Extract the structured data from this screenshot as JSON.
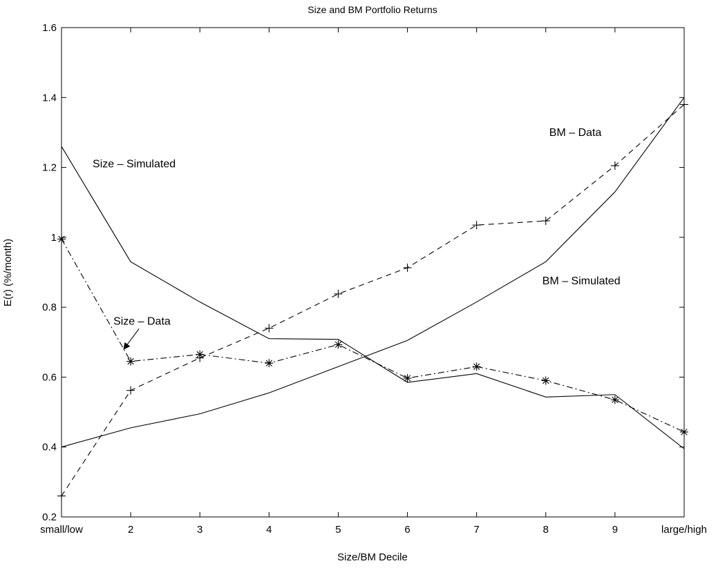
{
  "chart_data": {
    "type": "line",
    "title": "Size and BM Portfolio Returns",
    "xlabel": "Size/BM Decile",
    "ylabel": "E(r) (%/month)",
    "categories": [
      "small/low",
      "2",
      "3",
      "4",
      "5",
      "6",
      "7",
      "8",
      "9",
      "large/high"
    ],
    "x": [
      1,
      2,
      3,
      4,
      5,
      6,
      7,
      8,
      9,
      10
    ],
    "xlim": [
      1,
      10
    ],
    "ylim": [
      0.2,
      1.6
    ],
    "yticks": [
      0.2,
      0.4,
      0.6,
      0.8,
      1,
      1.2,
      1.4,
      1.6
    ],
    "ytick_labels": [
      "0.2",
      "0.4",
      "0.6",
      "0.8",
      "1",
      "1.2",
      "1.4",
      "1.6"
    ],
    "grid": false,
    "series": [
      {
        "key": "size_sim",
        "values": [
          1.26,
          0.93,
          0.815,
          0.71,
          0.708,
          0.585,
          0.61,
          0.543,
          0.55,
          0.395
        ],
        "line": "solid",
        "marker": "none",
        "color": "#000000"
      },
      {
        "key": "size_data",
        "values": [
          0.995,
          0.645,
          0.665,
          0.64,
          0.693,
          0.597,
          0.63,
          0.59,
          0.535,
          0.443
        ],
        "line": "dashdot",
        "marker": "asterisk",
        "color": "#000000"
      },
      {
        "key": "bm_sim",
        "values": [
          0.4,
          0.455,
          0.495,
          0.555,
          0.63,
          0.705,
          0.815,
          0.93,
          1.13,
          1.4
        ],
        "line": "solid",
        "marker": "none",
        "color": "#000000"
      },
      {
        "key": "bm_data",
        "values": [
          0.26,
          0.562,
          0.655,
          0.74,
          0.838,
          0.913,
          1.035,
          1.047,
          1.205,
          1.38
        ],
        "line": "dashed",
        "marker": "plus",
        "color": "#000000"
      }
    ],
    "annotations": [
      {
        "key": "size_sim_label",
        "text": "Size – Simulated",
        "x": 1.45,
        "y": 1.2
      },
      {
        "key": "size_data_label",
        "text": "Size – Data",
        "x": 1.75,
        "y": 0.75,
        "arrow_to": [
          1.9,
          0.68
        ]
      },
      {
        "key": "bm_data_label",
        "text": "BM – Data",
        "x": 8.05,
        "y": 1.29
      },
      {
        "key": "bm_sim_label",
        "text": "BM – Simulated",
        "x": 7.95,
        "y": 0.865
      }
    ]
  }
}
